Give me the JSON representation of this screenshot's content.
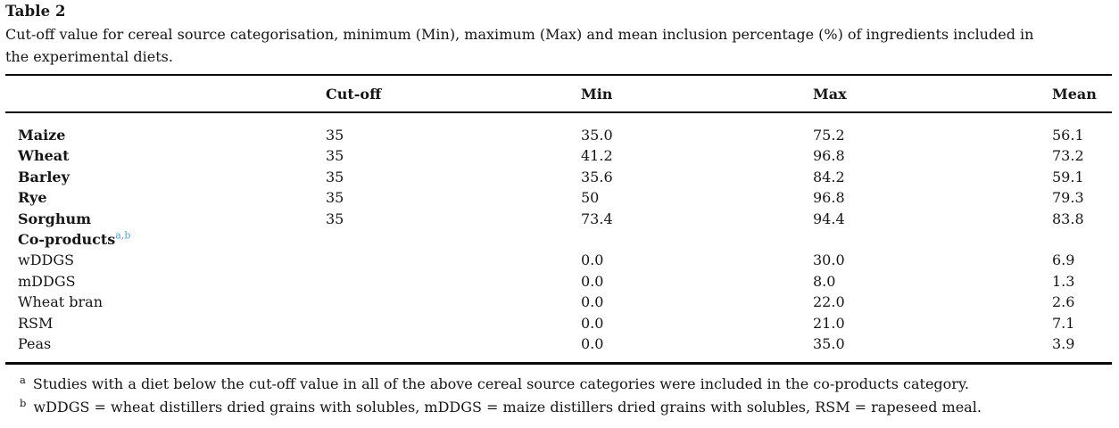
{
  "page": {
    "title": "Table 2",
    "caption_line1": "Cut-off value for cereal source categorisation, minimum (Min), maximum (Max) and mean inclusion percentage (%) of ingredients included in",
    "caption_line2": "the experimental diets."
  },
  "table": {
    "columns": [
      "",
      "Cut-off",
      "Min",
      "Max",
      "Mean"
    ],
    "rows": [
      {
        "label": "Maize",
        "bold": true,
        "sup": "",
        "cutoff": "35",
        "min": "35.0",
        "max": "75.2",
        "mean": "56.1"
      },
      {
        "label": "Wheat",
        "bold": true,
        "sup": "",
        "cutoff": "35",
        "min": "41.2",
        "max": "96.8",
        "mean": "73.2"
      },
      {
        "label": "Barley",
        "bold": true,
        "sup": "",
        "cutoff": "35",
        "min": "35.6",
        "max": "84.2",
        "mean": "59.1"
      },
      {
        "label": "Rye",
        "bold": true,
        "sup": "",
        "cutoff": "35",
        "min": "50",
        "max": "96.8",
        "mean": "79.3"
      },
      {
        "label": "Sorghum",
        "bold": true,
        "sup": "",
        "cutoff": "35",
        "min": "73.4",
        "max": "94.4",
        "mean": "83.8"
      },
      {
        "label": "Co-products",
        "bold": true,
        "sup": "a,b",
        "cutoff": "",
        "min": "",
        "max": "",
        "mean": ""
      },
      {
        "label": "wDDGS",
        "bold": false,
        "sup": "",
        "cutoff": "",
        "min": "0.0",
        "max": "30.0",
        "mean": "6.9"
      },
      {
        "label": "mDDGS",
        "bold": false,
        "sup": "",
        "cutoff": "",
        "min": "0.0",
        "max": "8.0",
        "mean": "1.3"
      },
      {
        "label": "Wheat bran",
        "bold": false,
        "sup": "",
        "cutoff": "",
        "min": "0.0",
        "max": "22.0",
        "mean": "2.6"
      },
      {
        "label": "RSM",
        "bold": false,
        "sup": "",
        "cutoff": "",
        "min": "0.0",
        "max": "21.0",
        "mean": "7.1"
      },
      {
        "label": "Peas",
        "bold": false,
        "sup": "",
        "cutoff": "",
        "min": "0.0",
        "max": "35.0",
        "mean": "3.9"
      }
    ]
  },
  "footnotes": [
    {
      "marker": "a",
      "text": "Studies with a diet below the cut-off value in all of the above cereal source categories were included in the co-products category."
    },
    {
      "marker": "b",
      "text": "wDDGS = wheat distillers dried grains with solubles, mDDGS = maize distillers dried grains with solubles, RSM = rapeseed meal."
    }
  ],
  "colors": {
    "text": "#161616",
    "rule": "#0a0a0a",
    "superscript_blue": "#4da2d5"
  }
}
